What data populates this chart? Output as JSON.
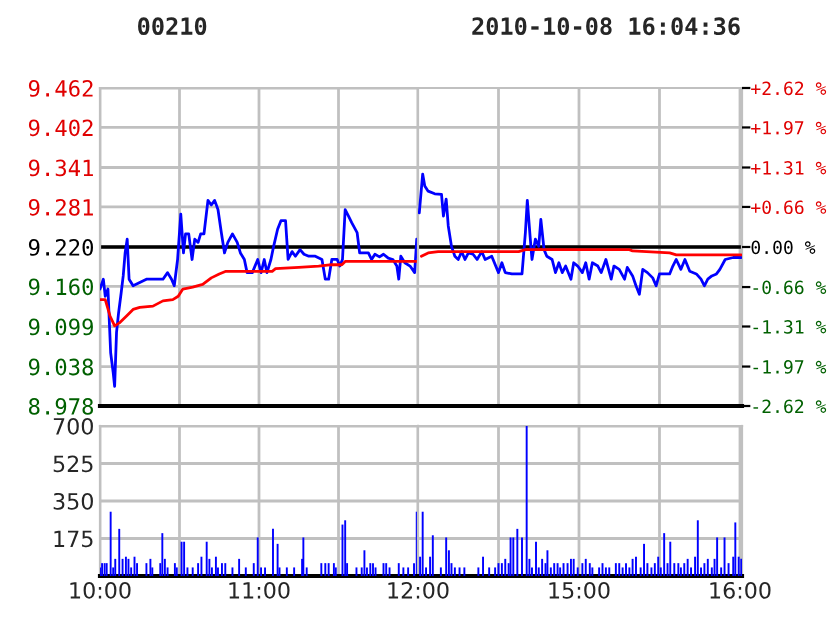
{
  "chart_data": [
    {
      "type": "line",
      "title": "00210",
      "tick_labels": "y",
      "grid": true,
      "xlim": [
        10,
        12
      ],
      "xticks": [
        {
          "value": 10,
          "label": null
        },
        {
          "value": 10.5,
          "label": null
        },
        {
          "value": 11,
          "label": null
        },
        {
          "value": 11.5,
          "label": null
        },
        {
          "value": 12,
          "label": null
        }
      ],
      "ylim": [
        8.978,
        9.462
      ],
      "yticks": [
        {
          "value": 8.978,
          "label": "8.978"
        },
        {
          "value": 9.038,
          "label": "9.038"
        },
        {
          "value": 9.099,
          "label": "9.099"
        },
        {
          "value": 9.16,
          "label": "9.160"
        },
        {
          "value": 9.22,
          "label": "9.220"
        },
        {
          "value": 9.281,
          "label": "9.281"
        },
        {
          "value": 9.341,
          "label": "9.341"
        },
        {
          "value": 9.402,
          "label": "9.402"
        },
        {
          "value": 9.462,
          "label": "9.462"
        }
      ],
      "ref_lines": [
        {
          "axis": "y",
          "value": 9.22,
          "color": "#000000"
        }
      ],
      "series": [
        {
          "color": "#0000ff",
          "x": [
            10,
            10.021,
            10.033,
            10.05,
            10.067,
            10.083,
            10.092,
            10.104,
            10.117,
            10.133,
            10.146,
            10.158,
            10.171,
            10.183,
            10.208,
            10.25,
            10.292,
            10.396,
            10.425,
            10.45,
            10.467,
            10.488,
            10.508,
            10.525,
            10.538,
            10.558,
            10.579,
            10.596,
            10.617,
            10.633,
            10.654,
            10.679,
            10.7,
            10.721,
            10.742,
            10.763,
            10.783,
            10.804,
            10.833,
            10.863,
            10.883,
            10.908,
            10.925,
            10.958,
            10.992,
            11.013,
            11.033,
            11.05,
            11.075,
            11.092,
            11.117,
            11.138,
            11.167,
            11.183,
            11.208,
            11.229,
            11.258,
            11.283,
            11.313,
            11.354,
            11.396,
            11.417,
            11.438,
            11.458,
            11.492,
            11.508,
            11.525,
            11.542,
            11.563,
            11.583,
            11.617,
            11.633,
            11.688,
            11.708,
            11.729,
            11.758,
            11.783,
            11.813,
            11.842,
            11.867,
            11.879,
            11.892,
            11.917,
            11.95,
            11.979,
            11.992
          ],
          "values": [
            9.156,
            9.171,
            9.145,
            9.156,
            9.059,
            9.029,
            9.008,
            9.09,
            9.12,
            9.15,
            9.176,
            9.211,
            9.232,
            9.171,
            9.161,
            9.166,
            9.171,
            9.171,
            9.181,
            9.171,
            9.161,
            9.201,
            9.27,
            9.211,
            9.24,
            9.24,
            9.201,
            9.232,
            9.227,
            9.24,
            9.24,
            9.291,
            9.284,
            9.291,
            9.277,
            9.242,
            9.211,
            9.227,
            9.24,
            9.227,
            9.211,
            9.201,
            9.181,
            9.181,
            9.201,
            9.181,
            9.201,
            9.181,
            9.201,
            9.221,
            9.247,
            9.26,
            9.26,
            9.201,
            9.213,
            9.206,
            9.216,
            9.209,
            9.206,
            9.206,
            9.201,
            9.171,
            9.171,
            9.201,
            9.201,
            9.191,
            9.201,
            9.277,
            9.267,
            9.257,
            9.242,
            9.211,
            9.211,
            9.201,
            9.209,
            9.205,
            9.209,
            9.203,
            9.201,
            9.191,
            9.171,
            9.206,
            9.196,
            9.191,
            9.181,
            9.232
          ]
        },
        {
          "color": "#ff0000",
          "x": [
            10,
            10.033,
            10.063,
            10.092,
            10.125,
            10.167,
            10.208,
            10.25,
            10.333,
            10.396,
            10.458,
            10.492,
            10.521,
            10.583,
            10.646,
            10.7,
            10.75,
            10.792,
            10.958,
            11.083,
            11.104,
            11.25,
            11.375,
            11.458,
            11.521,
            11.542,
            11.875,
            11.992
          ],
          "values": [
            9.14,
            9.14,
            9.115,
            9.1,
            9.105,
            9.115,
            9.125,
            9.128,
            9.13,
            9.138,
            9.14,
            9.145,
            9.156,
            9.159,
            9.163,
            9.173,
            9.179,
            9.183,
            9.183,
            9.183,
            9.187,
            9.189,
            9.191,
            9.193,
            9.193,
            9.198,
            9.198,
            9.198
          ]
        }
      ]
    },
    {
      "type": "line",
      "subtitle": "2010-10-08 16:04:36",
      "tick_labels": false,
      "grid": true,
      "xlim": [
        14,
        16.0125
      ],
      "xticks": [
        {
          "value": 14.5,
          "label": null
        },
        {
          "value": 15,
          "label": null
        },
        {
          "value": 15.5,
          "label": null
        },
        {
          "value": 16,
          "label": null
        }
      ],
      "ylim": [
        8.978,
        9.462
      ],
      "yticks": [
        {
          "value": 9.038,
          "label": null
        },
        {
          "value": 9.099,
          "label": null
        },
        {
          "value": 9.16,
          "label": null
        },
        {
          "value": 9.22,
          "label": null
        },
        {
          "value": 9.281,
          "label": null
        },
        {
          "value": 9.341,
          "label": null
        },
        {
          "value": 9.402,
          "label": null
        }
      ],
      "y2lim": [
        -2.62,
        2.62
      ],
      "y2ticks": [
        {
          "value": -2.62,
          "label": "-2.62 %"
        },
        {
          "value": -1.97,
          "label": "-1.97 %"
        },
        {
          "value": -1.31,
          "label": "-1.31 %"
        },
        {
          "value": -0.66,
          "label": "-0.66 %"
        },
        {
          "value": 0,
          "label": "0.00 %"
        },
        {
          "value": 0.66,
          "label": "+0.66 %"
        },
        {
          "value": 1.31,
          "label": "+1.31 %"
        },
        {
          "value": 1.97,
          "label": "+1.97 %"
        },
        {
          "value": 2.62,
          "label": "+2.62 %"
        }
      ],
      "ref_lines": [
        {
          "axis": "y",
          "value": 9.22,
          "color": "#000000"
        }
      ],
      "series": [
        {
          "color": "#0000ff",
          "x": [
            14.008,
            14.029,
            14.042,
            14.063,
            14.104,
            14.146,
            14.158,
            14.175,
            14.188,
            14.208,
            14.229,
            14.25,
            14.271,
            14.292,
            14.313,
            14.342,
            14.367,
            14.396,
            14.417,
            14.458,
            14.5,
            14.521,
            14.542,
            14.583,
            14.646,
            14.667,
            14.679,
            14.696,
            14.708,
            14.729,
            14.75,
            14.763,
            14.783,
            14.8,
            14.833,
            14.854,
            14.875,
            14.896,
            14.917,
            14.95,
            14.967,
            14.992,
            15.021,
            15.042,
            15.063,
            15.083,
            15.117,
            15.138,
            15.167,
            15.2,
            15.217,
            15.25,
            15.283,
            15.3,
            15.333,
            15.354,
            15.375,
            15.396,
            15.425,
            15.458,
            15.479,
            15.5,
            15.563,
            15.583,
            15.604,
            15.633,
            15.658,
            15.688,
            15.729,
            15.758,
            15.779,
            15.8,
            15.825,
            15.854,
            15.875,
            15.908,
            15.958,
            16.008
          ],
          "values": [
            9.272,
            9.331,
            9.313,
            9.305,
            9.301,
            9.3,
            9.267,
            9.293,
            9.252,
            9.221,
            9.206,
            9.201,
            9.213,
            9.201,
            9.211,
            9.209,
            9.201,
            9.213,
            9.201,
            9.206,
            9.181,
            9.196,
            9.181,
            9.179,
            9.179,
            9.242,
            9.291,
            9.237,
            9.201,
            9.232,
            9.221,
            9.262,
            9.216,
            9.206,
            9.201,
            9.181,
            9.196,
            9.181,
            9.191,
            9.171,
            9.196,
            9.191,
            9.181,
            9.196,
            9.171,
            9.196,
            9.191,
            9.181,
            9.201,
            9.171,
            9.191,
            9.186,
            9.171,
            9.189,
            9.176,
            9.161,
            9.148,
            9.186,
            9.181,
            9.173,
            9.161,
            9.179,
            9.179,
            9.191,
            9.201,
            9.186,
            9.201,
            9.183,
            9.179,
            9.171,
            9.161,
            9.171,
            9.176,
            9.179,
            9.186,
            9.201,
            9.204,
            9.204
          ]
        },
        {
          "color": "#ff0000",
          "x": [
            14.021,
            14.063,
            14.125,
            14.625,
            14.667,
            15.313,
            15.333,
            15.563,
            15.604,
            16.008
          ],
          "values": [
            9.206,
            9.211,
            9.213,
            9.213,
            9.216,
            9.216,
            9.214,
            9.211,
            9.208,
            9.208
          ]
        }
      ]
    },
    {
      "type": "bar",
      "color": "#0000ff",
      "grid": true,
      "xlim": [
        10,
        12
      ],
      "xticks": [
        {
          "value": 10,
          "label": "10:00"
        },
        {
          "value": 10.5,
          "label": null
        },
        {
          "value": 11,
          "label": "11:00"
        },
        {
          "value": 11.5,
          "label": null
        },
        {
          "value": 12,
          "label": "12:00"
        }
      ],
      "ylim": [
        0,
        700
      ],
      "yticks": [
        175,
        350,
        525,
        700
      ],
      "x": [
        10,
        10.013,
        10.029,
        10.042,
        10.067,
        10.083,
        10.096,
        10.121,
        10.142,
        10.163,
        10.179,
        10.196,
        10.217,
        10.233,
        10.292,
        10.317,
        10.329,
        10.379,
        10.392,
        10.408,
        10.425,
        10.471,
        10.483,
        10.513,
        10.529,
        10.55,
        10.583,
        10.617,
        10.638,
        10.671,
        10.688,
        10.704,
        10.729,
        10.742,
        10.767,
        10.788,
        10.833,
        10.875,
        10.917,
        10.967,
        10.992,
        11.013,
        11.038,
        11.088,
        11.117,
        11.129,
        11.175,
        11.221,
        11.271,
        11.279,
        11.3,
        11.392,
        11.417,
        11.438,
        11.471,
        11.483,
        11.525,
        11.542,
        11.554,
        11.613,
        11.646,
        11.663,
        11.679,
        11.7,
        11.717,
        11.733,
        11.783,
        11.8,
        11.821,
        11.879,
        11.908,
        11.938,
        11.975,
        11.992
      ],
      "values": [
        40,
        60,
        60,
        60,
        300,
        40,
        80,
        220,
        80,
        90,
        80,
        40,
        90,
        60,
        60,
        80,
        40,
        60,
        200,
        80,
        40,
        60,
        40,
        160,
        160,
        40,
        40,
        60,
        90,
        160,
        80,
        40,
        90,
        40,
        60,
        60,
        40,
        80,
        40,
        60,
        180,
        40,
        40,
        220,
        150,
        40,
        40,
        40,
        80,
        180,
        40,
        60,
        60,
        60,
        60,
        40,
        240,
        260,
        60,
        40,
        40,
        120,
        40,
        60,
        60,
        40,
        60,
        60,
        40,
        60,
        40,
        40,
        60,
        300
      ]
    },
    {
      "type": "bar",
      "color": "#0000ff",
      "grid": true,
      "tick_labels": "x",
      "xlim": [
        14,
        16.0125
      ],
      "xticks": [
        {
          "value": 14.5,
          "label": null
        },
        {
          "value": 15,
          "label": "15:00"
        },
        {
          "value": 15.5,
          "label": null
        },
        {
          "value": 16,
          "label": "16:00"
        }
      ],
      "ylim": [
        0,
        700
      ],
      "yticks": [
        175,
        350,
        525,
        700
      ],
      "x": [
        14.013,
        14.029,
        14.05,
        14.075,
        14.092,
        14.142,
        14.175,
        14.192,
        14.208,
        14.229,
        14.258,
        14.288,
        14.375,
        14.404,
        14.442,
        14.479,
        14.5,
        14.521,
        14.542,
        14.563,
        14.575,
        14.592,
        14.617,
        14.646,
        14.675,
        14.692,
        14.708,
        14.733,
        14.75,
        14.771,
        14.792,
        14.804,
        14.825,
        14.846,
        14.867,
        14.883,
        14.904,
        14.929,
        14.95,
        14.967,
        14.992,
        15.021,
        15.042,
        15.067,
        15.083,
        15.125,
        15.146,
        15.167,
        15.188,
        15.229,
        15.25,
        15.271,
        15.292,
        15.313,
        15.333,
        15.354,
        15.383,
        15.404,
        15.425,
        15.45,
        15.471,
        15.492,
        15.508,
        15.529,
        15.55,
        15.567,
        15.592,
        15.617,
        15.633,
        15.654,
        15.675,
        15.696,
        15.721,
        15.738,
        15.758,
        15.779,
        15.8,
        15.825,
        15.842,
        15.858,
        15.883,
        15.904,
        15.929,
        15.958,
        15.971,
        15.992,
        16.008
      ],
      "values": [
        90,
        300,
        40,
        90,
        190,
        40,
        180,
        120,
        60,
        40,
        40,
        40,
        40,
        90,
        40,
        40,
        60,
        60,
        80,
        60,
        180,
        180,
        220,
        180,
        700,
        80,
        40,
        160,
        40,
        80,
        60,
        120,
        40,
        60,
        60,
        40,
        60,
        60,
        80,
        80,
        40,
        60,
        80,
        60,
        40,
        40,
        60,
        40,
        40,
        60,
        60,
        40,
        60,
        40,
        80,
        90,
        40,
        150,
        60,
        40,
        60,
        90,
        40,
        200,
        60,
        160,
        60,
        60,
        40,
        60,
        80,
        40,
        90,
        260,
        40,
        60,
        80,
        40,
        80,
        180,
        40,
        180,
        60,
        90,
        250,
        90,
        80
      ]
    }
  ]
}
